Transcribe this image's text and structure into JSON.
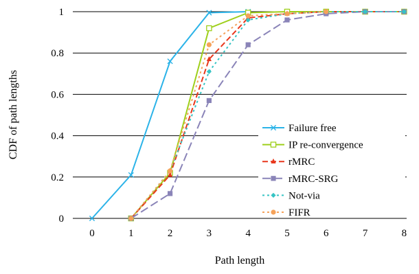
{
  "chart_data": {
    "type": "line",
    "title": "",
    "xlabel": "Path length",
    "ylabel": "CDF of path lengths",
    "x": [
      0,
      1,
      2,
      3,
      4,
      5,
      6,
      7,
      8
    ],
    "xlim": [
      0,
      8
    ],
    "ylim": [
      0,
      1
    ],
    "xticks": [
      "0",
      "1",
      "2",
      "3",
      "4",
      "5",
      "6",
      "7",
      "8"
    ],
    "yticks": [
      "0",
      "0.2",
      "0.4",
      "0.6",
      "0.8",
      "1"
    ],
    "grid": "horizontal",
    "legend_position": "right",
    "series": [
      {
        "name": "Failure free",
        "color": "#2bb3e8",
        "dash": "solid",
        "marker": "x",
        "x": [
          0,
          1,
          2,
          3,
          4
        ],
        "values": [
          0,
          0.21,
          0.76,
          0.995,
          1.0
        ]
      },
      {
        "name": "IP re-convergence",
        "color": "#9ecf1b",
        "dash": "solid",
        "marker": "square-open",
        "x": [
          1,
          2,
          3,
          4,
          5,
          6,
          7,
          8
        ],
        "values": [
          0,
          0.22,
          0.92,
          0.995,
          1.0,
          1.0,
          1.0,
          1.0
        ]
      },
      {
        "name": "rMRC",
        "color": "#e8371c",
        "dash": "dashed",
        "marker": "triangle",
        "x": [
          1,
          2,
          3,
          4,
          5,
          6,
          7,
          8
        ],
        "values": [
          0,
          0.21,
          0.77,
          0.97,
          0.99,
          1.0,
          1.0,
          1.0
        ]
      },
      {
        "name": "rMRC-SRG",
        "color": "#8a84b8",
        "dash": "longdash",
        "marker": "square",
        "x": [
          1,
          2,
          3,
          4,
          5,
          6,
          7,
          8
        ],
        "values": [
          0,
          0.12,
          0.57,
          0.84,
          0.96,
          0.99,
          1.0,
          1.0
        ]
      },
      {
        "name": "Not-via",
        "color": "#36c4c4",
        "dash": "dotted",
        "marker": "diamond",
        "x": [
          1,
          2,
          3,
          4,
          5,
          6,
          7,
          8
        ],
        "values": [
          0,
          0.23,
          0.71,
          0.96,
          0.99,
          1.0,
          1.0,
          1.0
        ]
      },
      {
        "name": "FIFR",
        "color": "#f5a25a",
        "dash": "dotted",
        "marker": "circle",
        "x": [
          1,
          2,
          3,
          4,
          5,
          6
        ],
        "values": [
          0,
          0.23,
          0.84,
          0.98,
          0.99,
          1.0
        ]
      }
    ]
  }
}
